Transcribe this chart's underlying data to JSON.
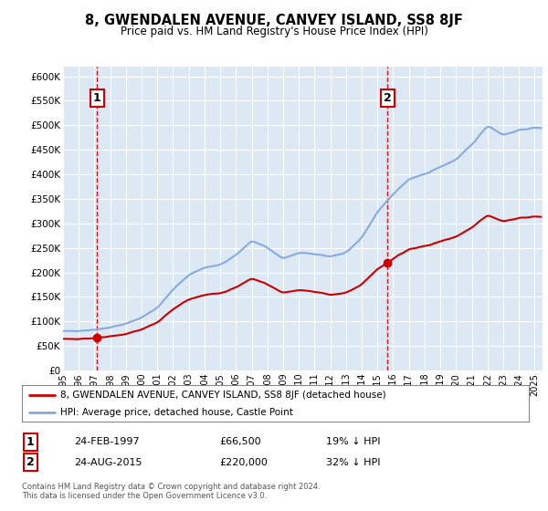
{
  "title": "8, GWENDALEN AVENUE, CANVEY ISLAND, SS8 8JF",
  "subtitle": "Price paid vs. HM Land Registry's House Price Index (HPI)",
  "plot_bg_color": "#dce9f5",
  "ylim": [
    0,
    620000
  ],
  "yticks": [
    0,
    50000,
    100000,
    150000,
    200000,
    250000,
    300000,
    350000,
    400000,
    450000,
    500000,
    550000,
    600000
  ],
  "xlim_start": 1995.0,
  "xlim_end": 2025.5,
  "sale1_x": 1997.15,
  "sale1_y": 66500,
  "sale1_label": "1",
  "sale1_date": "24-FEB-1997",
  "sale1_price": "£66,500",
  "sale1_hpi": "19% ↓ HPI",
  "sale2_x": 2015.65,
  "sale2_y": 220000,
  "sale2_label": "2",
  "sale2_date": "24-AUG-2015",
  "sale2_price": "£220,000",
  "sale2_hpi": "32% ↓ HPI",
  "line_color_sold": "#cc0000",
  "line_color_hpi": "#88aadd",
  "marker_color": "#cc0000",
  "dashed_line_color": "#cc0000",
  "legend_label_sold": "8, GWENDALEN AVENUE, CANVEY ISLAND, SS8 8JF (detached house)",
  "legend_label_hpi": "HPI: Average price, detached house, Castle Point",
  "footer": "Contains HM Land Registry data © Crown copyright and database right 2024.\nThis data is licensed under the Open Government Licence v3.0.",
  "xlabel_years": [
    "1995",
    "1996",
    "1997",
    "1998",
    "1999",
    "2000",
    "2001",
    "2002",
    "2003",
    "2004",
    "2005",
    "2006",
    "2007",
    "2008",
    "2009",
    "2010",
    "2011",
    "2012",
    "2013",
    "2014",
    "2015",
    "2016",
    "2017",
    "2018",
    "2019",
    "2020",
    "2021",
    "2022",
    "2023",
    "2024",
    "2025"
  ]
}
